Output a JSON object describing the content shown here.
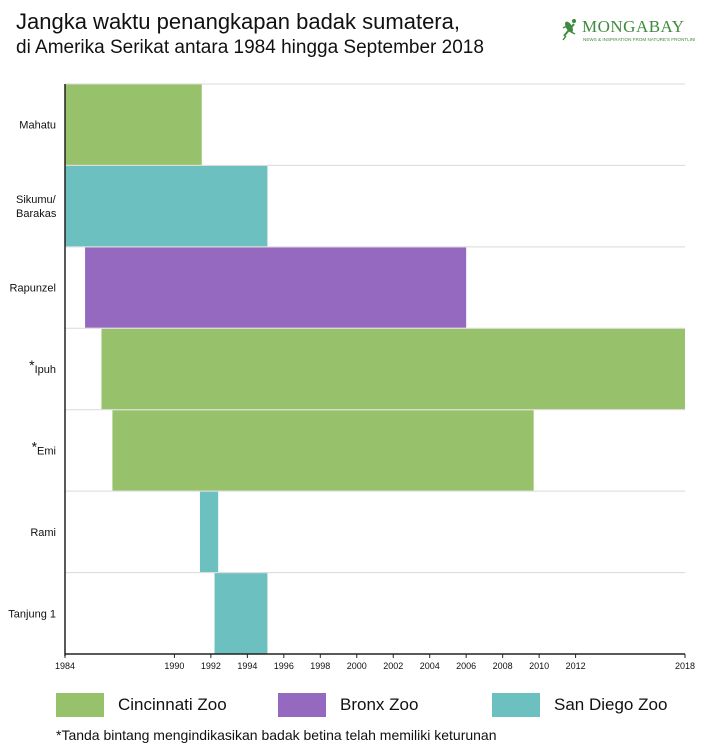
{
  "header": {
    "title_line1": "Jangka waktu penangkapan badak sumatera,",
    "title_line2": "di Amerika Serikat antara 1984 hingga September 2018"
  },
  "logo": {
    "text": "MONGABAY",
    "tagline": "NEWS & INSPIRATION FROM NATURE'S FRONTLINE",
    "icon": "gecko-icon",
    "color": "#3d8b3d"
  },
  "colors": {
    "Cincinnati Zoo": "#97c26b",
    "Bronx Zoo": "#9569c0",
    "San Diego Zoo": "#6cc1c0"
  },
  "chart_data": {
    "type": "bar",
    "orientation": "horizontal",
    "xlim": [
      1984,
      2018
    ],
    "x_ticks": [
      "1984",
      "1990",
      "1992",
      "1994",
      "1996",
      "1998",
      "2000",
      "2002",
      "2004",
      "2006",
      "2008",
      "2010",
      "2012",
      "2018"
    ],
    "x_tick_values": [
      1984,
      1990,
      1992,
      1994,
      1996,
      1998,
      2000,
      2002,
      2004,
      2006,
      2008,
      2010,
      2012,
      2018
    ],
    "grid": "horizontal row separators",
    "rows": [
      {
        "label": "Mahatu",
        "star": "",
        "start": 1984.0,
        "end": 1991.5,
        "zoo": "Cincinnati Zoo"
      },
      {
        "label": "Sikumu/ Barakas",
        "label_lines": [
          "Sikumu/",
          "Barakas"
        ],
        "star": "",
        "start": 1984.0,
        "end": 1995.1,
        "zoo": "San Diego Zoo"
      },
      {
        "label": "Rapunzel",
        "star": "",
        "start": 1985.1,
        "end": 2006.0,
        "zoo": "Bronx Zoo"
      },
      {
        "label": "Ipuh",
        "star": "*",
        "start": 1986.0,
        "end": 2018.0,
        "zoo": "Cincinnati Zoo"
      },
      {
        "label": "Emi",
        "star": "*",
        "start": 1986.6,
        "end": 2009.7,
        "zoo": "Cincinnati Zoo"
      },
      {
        "label": "Rami",
        "star": "",
        "start": 1991.4,
        "end": 1992.4,
        "zoo": "San Diego Zoo"
      },
      {
        "label": "Tanjung 1",
        "star": "",
        "start": 1992.2,
        "end": 1995.1,
        "zoo": "San Diego Zoo"
      }
    ]
  },
  "legend": {
    "items": [
      {
        "label": "Cincinnati Zoo",
        "color": "#97c26b"
      },
      {
        "label": "Bronx Zoo",
        "color": "#9569c0"
      },
      {
        "label": "San Diego Zoo",
        "color": "#6cc1c0"
      }
    ]
  },
  "footnote": {
    "star": "*",
    "text": "Tanda bintang mengindikasikan badak betina telah memiliki keturunan"
  }
}
